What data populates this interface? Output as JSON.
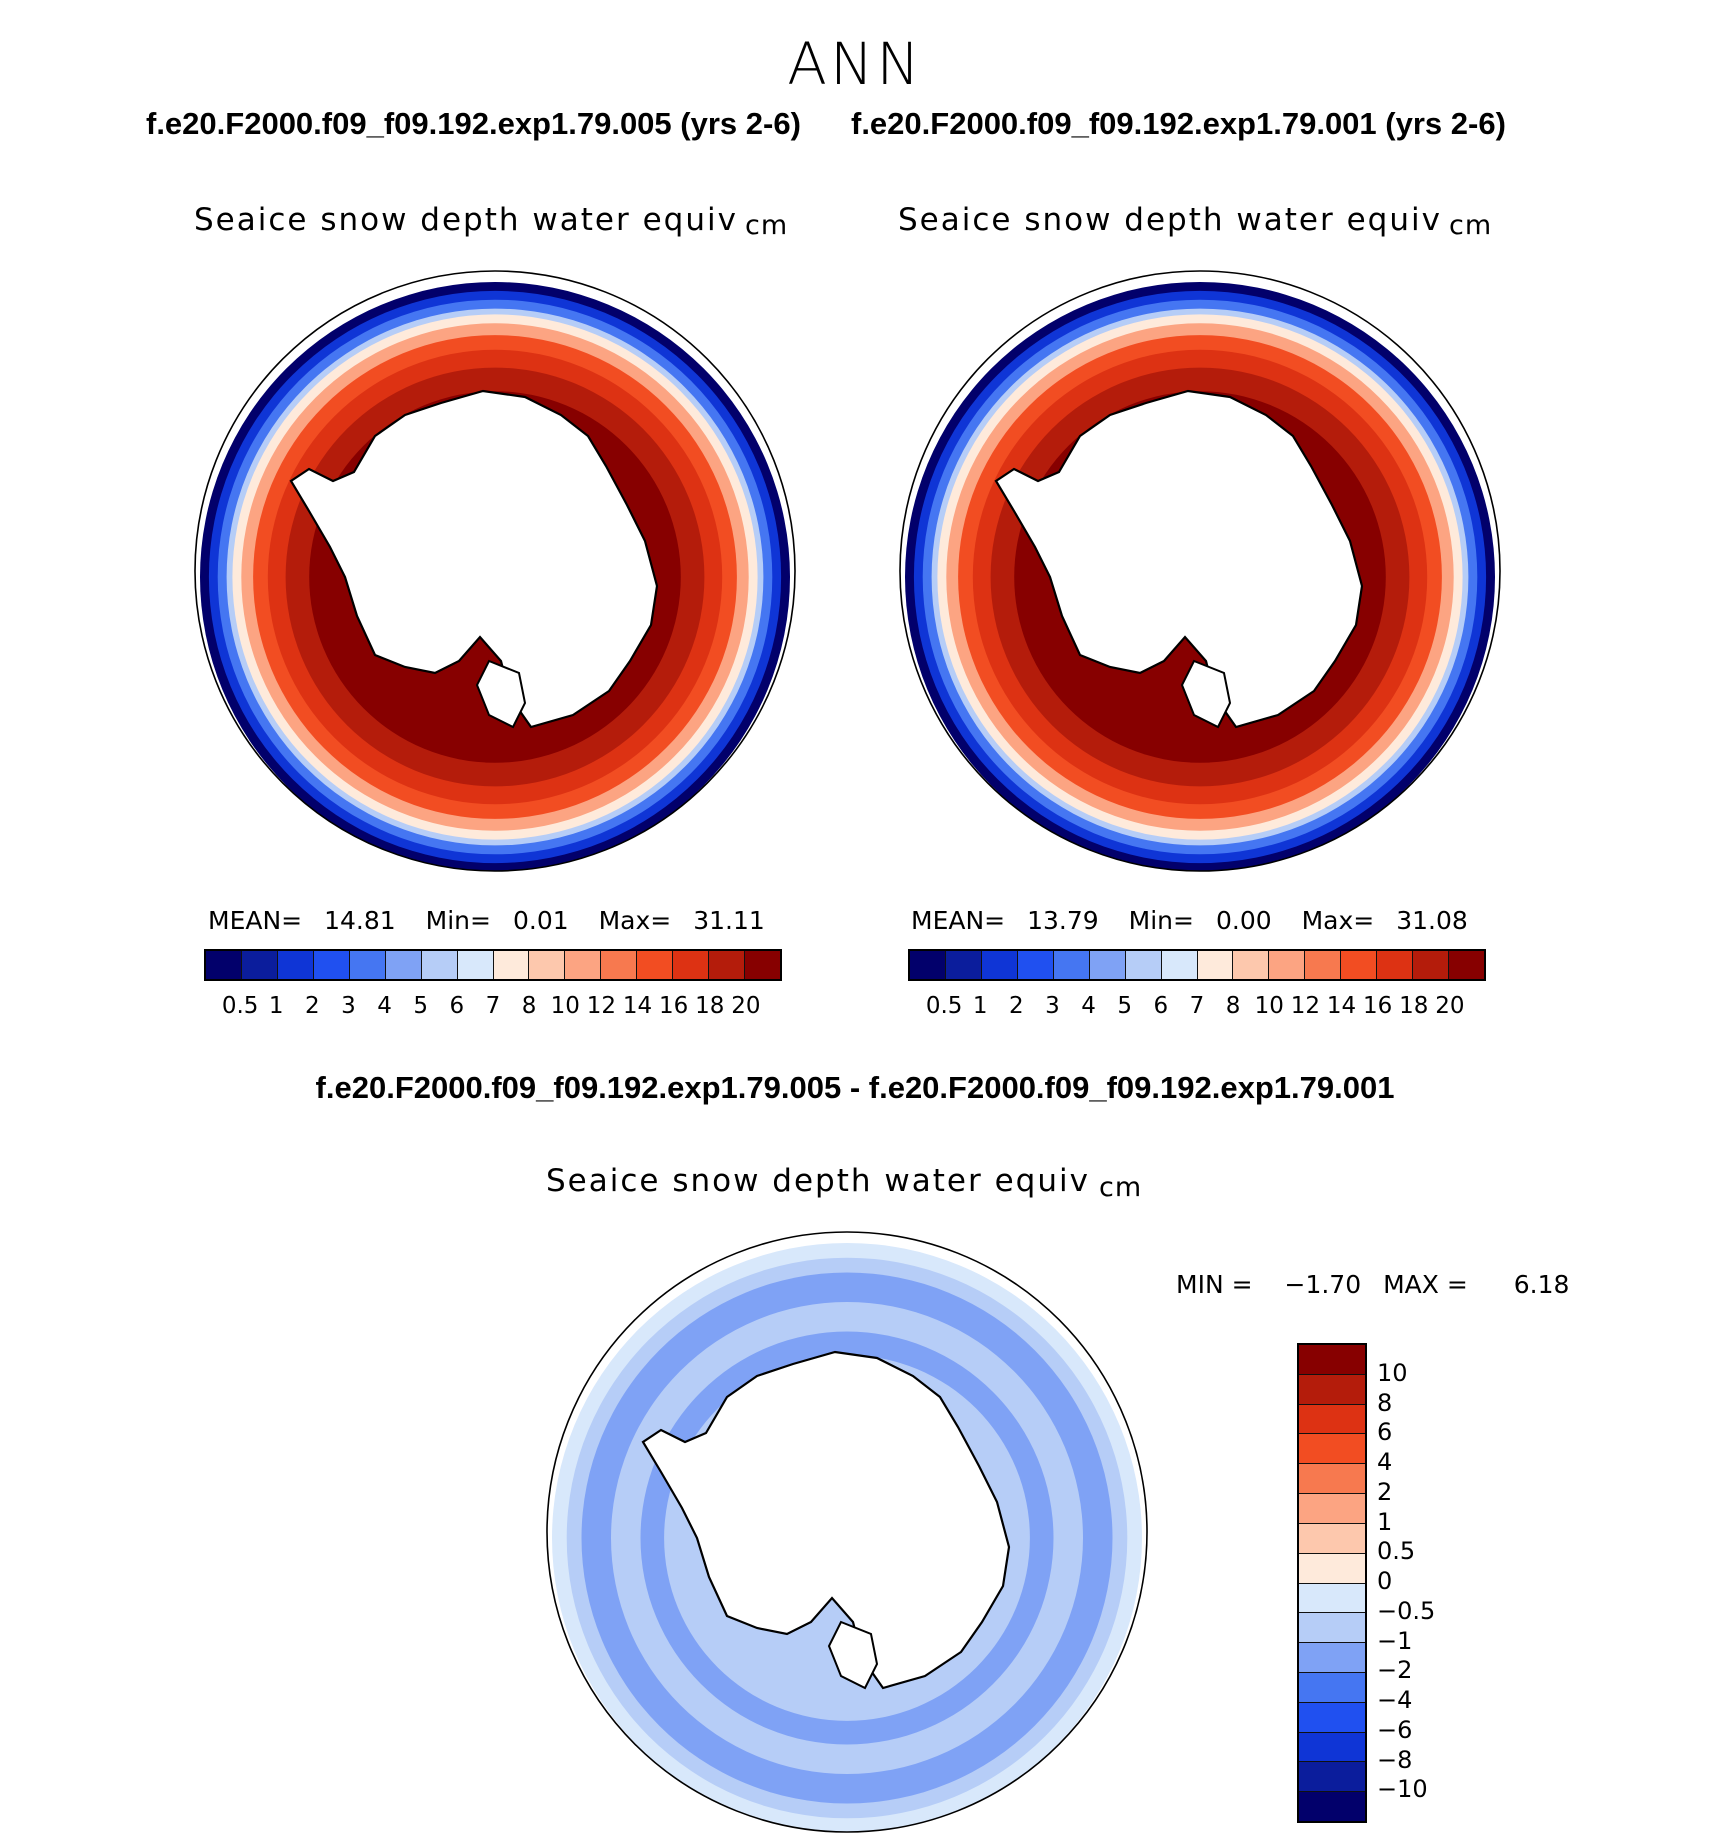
{
  "season": "ANN",
  "case1_header": "f.e20.F2000.f09_f09.192.exp1.79.005 (yrs 2-6)",
  "case2_header": "f.e20.F2000.f09_f09.192.exp1.79.001 (yrs 2-6)",
  "diff_header": "f.e20.F2000.f09_f09.192.exp1.79.005 - f.e20.F2000.f09_f09.192.exp1.79.001",
  "chart_data": [
    {
      "type": "heatmap",
      "title": "Seaice snow depth water equiv",
      "units": "cm",
      "projection": "south polar stereographic",
      "mean_label": "MEAN=",
      "mean": "14.81",
      "min_label": "Min=",
      "min": "0.01",
      "max_label": "Max=",
      "max": "31.11",
      "colorbar_levels": [
        "0.5",
        "1",
        "2",
        "3",
        "4",
        "5",
        "6",
        "7",
        "8",
        "10",
        "12",
        "14",
        "16",
        "18",
        "20"
      ],
      "colors": [
        "#02006b",
        "#0b1d9c",
        "#0f35d6",
        "#2050f0",
        "#4576f2",
        "#7fa2f5",
        "#b6cdf7",
        "#d8e8fb",
        "#feeadb",
        "#fdc8ad",
        "#fca482",
        "#f7794f",
        "#f24d22",
        "#dd3213",
        "#b41c0b",
        "#870000"
      ],
      "ring_bands": [
        {
          "r": 1.0,
          "level": 0
        },
        {
          "r": 0.97,
          "level": 2
        },
        {
          "r": 0.94,
          "level": 4
        },
        {
          "r": 0.91,
          "level": 6
        },
        {
          "r": 0.89,
          "level": 8
        },
        {
          "r": 0.86,
          "level": 10
        },
        {
          "r": 0.82,
          "level": 12
        },
        {
          "r": 0.77,
          "level": 13
        },
        {
          "r": 0.71,
          "level": 14
        },
        {
          "r": 0.63,
          "level": 15
        }
      ]
    },
    {
      "type": "heatmap",
      "title": "Seaice snow depth water equiv",
      "units": "cm",
      "projection": "south polar stereographic",
      "mean_label": "MEAN=",
      "mean": "13.79",
      "min_label": "Min=",
      "min": "0.00",
      "max_label": "Max=",
      "max": "31.08",
      "colorbar_levels": [
        "0.5",
        "1",
        "2",
        "3",
        "4",
        "5",
        "6",
        "7",
        "8",
        "10",
        "12",
        "14",
        "16",
        "18",
        "20"
      ],
      "colors": [
        "#02006b",
        "#0b1d9c",
        "#0f35d6",
        "#2050f0",
        "#4576f2",
        "#7fa2f5",
        "#b6cdf7",
        "#d8e8fb",
        "#feeadb",
        "#fdc8ad",
        "#fca482",
        "#f7794f",
        "#f24d22",
        "#dd3213",
        "#b41c0b",
        "#870000"
      ],
      "ring_bands": [
        {
          "r": 1.0,
          "level": 0
        },
        {
          "r": 0.97,
          "level": 2
        },
        {
          "r": 0.94,
          "level": 4
        },
        {
          "r": 0.91,
          "level": 6
        },
        {
          "r": 0.89,
          "level": 8
        },
        {
          "r": 0.86,
          "level": 10
        },
        {
          "r": 0.82,
          "level": 12
        },
        {
          "r": 0.77,
          "level": 13
        },
        {
          "r": 0.71,
          "level": 14
        },
        {
          "r": 0.63,
          "level": 15
        }
      ]
    },
    {
      "type": "heatmap",
      "title": "Seaice snow depth water equiv",
      "units": "cm",
      "projection": "south polar stereographic",
      "min_label": "MIN =",
      "min": "−1.70",
      "max_label": "MAX =",
      "max": "6.18",
      "colorbar_levels": [
        "10",
        "8",
        "6",
        "4",
        "2",
        "1",
        "0.5",
        "0",
        "−0.5",
        "−1",
        "−2",
        "−4",
        "−6",
        "−8",
        "−10"
      ],
      "colors": [
        "#870000",
        "#b41c0b",
        "#dd3213",
        "#f24d22",
        "#f7794f",
        "#fca482",
        "#fdc8ad",
        "#feeadb",
        "#d8e8fb",
        "#b6cdf7",
        "#7fa2f5",
        "#4576f2",
        "#2050f0",
        "#0f35d6",
        "#0b1d9c",
        "#02006b"
      ],
      "ring_bands": [
        {
          "r": 1.0,
          "level": 8
        },
        {
          "r": 0.95,
          "level": 9
        },
        {
          "r": 0.9,
          "level": 10
        },
        {
          "r": 0.8,
          "level": 9
        },
        {
          "r": 0.7,
          "level": 10
        },
        {
          "r": 0.62,
          "level": 9
        }
      ]
    }
  ]
}
